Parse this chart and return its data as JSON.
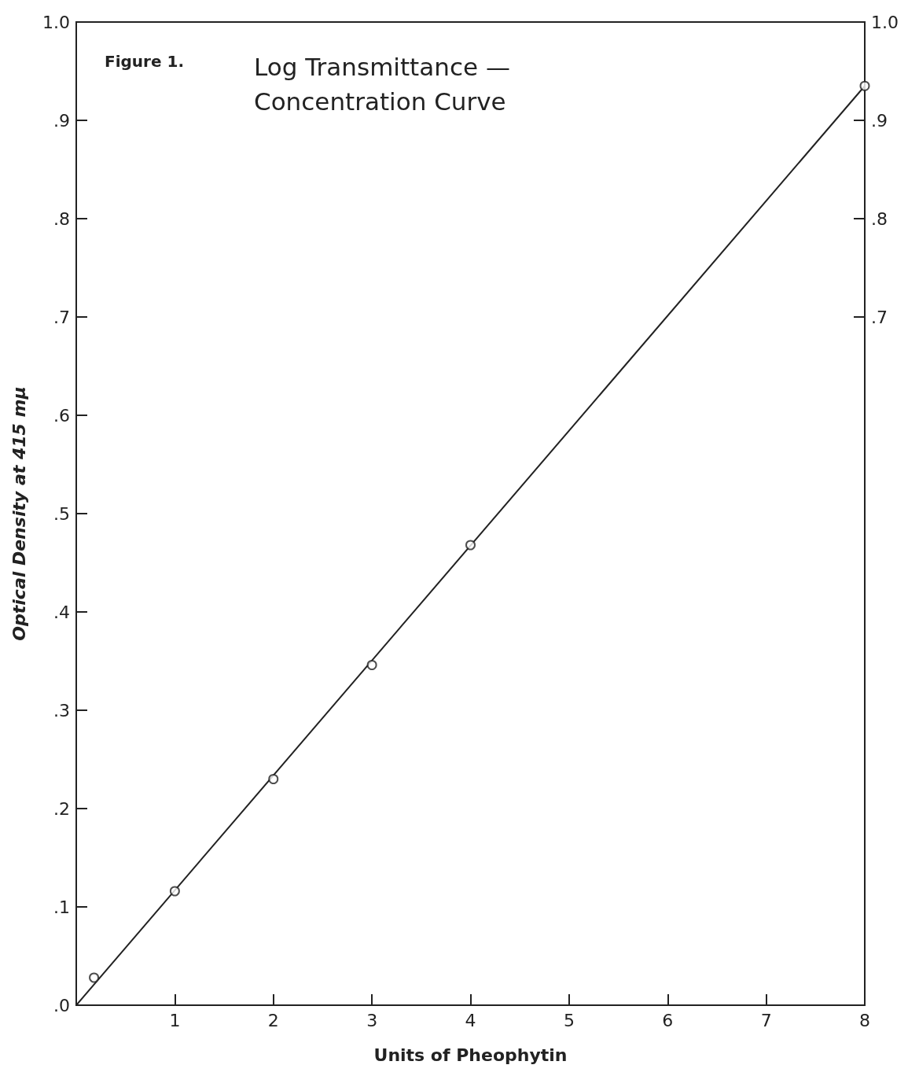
{
  "chart_data": {
    "type": "scatter",
    "title": "Log Transmittance — Concentration Curve",
    "annotations": [
      "Figure 1."
    ],
    "xlabel": "Units of Pheophytin",
    "ylabel": "Optical Density at 415 mμ",
    "marker": "circle",
    "grid": false,
    "x": [
      0.18,
      1,
      2,
      3,
      4,
      8
    ],
    "series": [
      {
        "color": "#222222",
        "values": [
          0.028,
          0.116,
          0.23,
          0.346,
          0.468,
          0.935
        ]
      },
      {
        "type": "line",
        "color": "#222222",
        "line_style": "solid",
        "marker": "none",
        "x": [
          0,
          8
        ],
        "values": [
          0,
          0.935
        ]
      }
    ],
    "xlim": [
      0,
      8
    ],
    "xticks": [
      1,
      2,
      3,
      4,
      5,
      6,
      7,
      8
    ],
    "ylim": [
      0,
      1
    ],
    "yticks": [
      {
        "value": 0,
        "label": ".0"
      },
      {
        "value": 0.1,
        "label": ".1"
      },
      {
        "value": 0.2,
        "label": ".2"
      },
      {
        "value": 0.3,
        "label": ".3"
      },
      {
        "value": 0.4,
        "label": ".4"
      },
      {
        "value": 0.5,
        "label": ".5"
      },
      {
        "value": 0.6,
        "label": ".6"
      },
      {
        "value": 0.7,
        "label": ".7"
      },
      {
        "value": 0.8,
        "label": ".8"
      },
      {
        "value": 0.9,
        "label": ".9"
      },
      {
        "value": 1,
        "label": "1.0"
      }
    ],
    "y2lim": [
      0,
      1
    ],
    "y2ticks": [
      {
        "value": 0.7,
        "label": ".7"
      },
      {
        "value": 0.8,
        "label": ".8"
      },
      {
        "value": 0.9,
        "label": ".9"
      },
      {
        "value": 1,
        "label": "1.0"
      }
    ]
  }
}
